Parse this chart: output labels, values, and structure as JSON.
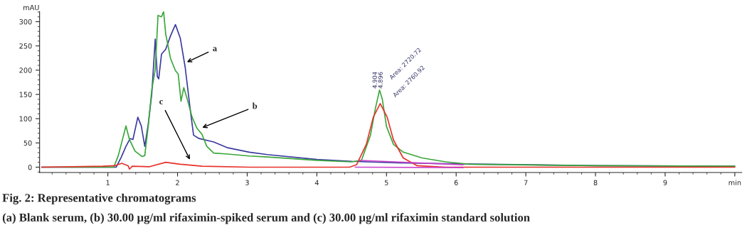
{
  "chart_data": {
    "type": "line",
    "title": "Fig. 2: Representative chromatograms",
    "subtitle": "(a) Blank serum, (b) 30.00 µg/ml rifaximin-spiked serum and (c) 30.00 µg/ml rifaximin standard solution",
    "ylabel": "mAU",
    "xlim": [
      0.02,
      10.1
    ],
    "ylim": [
      -11,
      321
    ],
    "xticks": [
      1,
      2,
      3,
      4,
      5,
      6,
      7,
      8,
      9,
      {
        "value": 10,
        "label": "min"
      }
    ],
    "yticks": [
      0,
      50,
      100,
      150,
      200,
      250,
      300
    ],
    "grid": false,
    "legend": false,
    "series": [
      {
        "color": "#3a3aa0",
        "x": [
          0.05,
          1.12,
          1.19,
          1.26,
          1.32,
          1.36,
          1.43,
          1.48,
          1.53,
          1.58,
          1.63,
          1.68,
          1.71,
          1.73,
          1.77,
          1.83,
          1.9,
          1.97,
          2.04,
          2.11,
          2.18,
          2.23,
          2.31,
          2.52,
          2.72,
          3.03,
          3.29,
          4.0,
          4.5,
          5.18,
          5.85,
          6.46,
          8.0,
          10.0
        ],
        "values": [
          0,
          0,
          20,
          43,
          59,
          57,
          103,
          85,
          43,
          89,
          150,
          264,
          187,
          182,
          233,
          243,
          271,
          294,
          266,
          206,
          122,
          66,
          59,
          52,
          40,
          31,
          26,
          16,
          12,
          9,
          7,
          6,
          3,
          2
        ]
      },
      {
        "color": "#3aa63a",
        "x": [
          0.05,
          1.085,
          1.15,
          1.26,
          1.31,
          1.39,
          1.49,
          1.53,
          1.58,
          1.63,
          1.68,
          1.72,
          1.77,
          1.8,
          1.83,
          1.9,
          1.97,
          2.01,
          2.05,
          2.09,
          2.14,
          2.21,
          2.28,
          2.35,
          2.42,
          2.52,
          2.72,
          3.03,
          3.29,
          4.0,
          4.5,
          4.64,
          4.77,
          4.84,
          4.9,
          4.94,
          5.0,
          5.1,
          5.24,
          5.51,
          5.85,
          6.19,
          8.0,
          10.0
        ],
        "values": [
          0,
          0,
          24,
          85,
          57,
          33,
          22,
          24,
          85,
          159,
          201,
          313,
          310,
          321,
          275,
          224,
          199,
          192,
          136,
          164,
          140,
          103,
          80,
          68,
          43,
          29,
          27,
          23,
          21,
          14,
          11,
          14,
          66,
          121,
          159,
          140,
          84,
          47,
          31,
          19,
          11,
          6,
          3,
          2
        ]
      },
      {
        "color": "#e8302a",
        "x": [
          0.05,
          0.93,
          1.1,
          1.2,
          1.29,
          1.31,
          1.35,
          1.6,
          1.83,
          2.04,
          2.35,
          3.03,
          4.47,
          4.57,
          4.71,
          4.81,
          4.91,
          5.01,
          5.1,
          5.24,
          5.44,
          5.85,
          10.0
        ],
        "values": [
          0,
          2,
          3,
          8,
          3,
          -4,
          2,
          1,
          10,
          6,
          2,
          0,
          0,
          5,
          47,
          103,
          131,
          103,
          56,
          19,
          3,
          0,
          0
        ]
      },
      {
        "color": "#cc44cc",
        "x": [
          4.62,
          6.1
        ],
        "values": [
          14,
          5
        ]
      },
      {
        "color": "#cc44cc",
        "x": [
          4.55,
          6.1
        ],
        "values": [
          0,
          -1
        ]
      }
    ],
    "annotations": [
      {
        "text": "a",
        "x": 2.11,
        "y": 215
      },
      {
        "text": "b",
        "x": 2.33,
        "y": 80
      },
      {
        "text": "c",
        "x": 2.19,
        "y": 12
      },
      "4.904",
      {
        "text": "4.896",
        "x": 4.92,
        "y": 162
      },
      "Area: 2720.72",
      "Area: 2760.92"
    ]
  }
}
